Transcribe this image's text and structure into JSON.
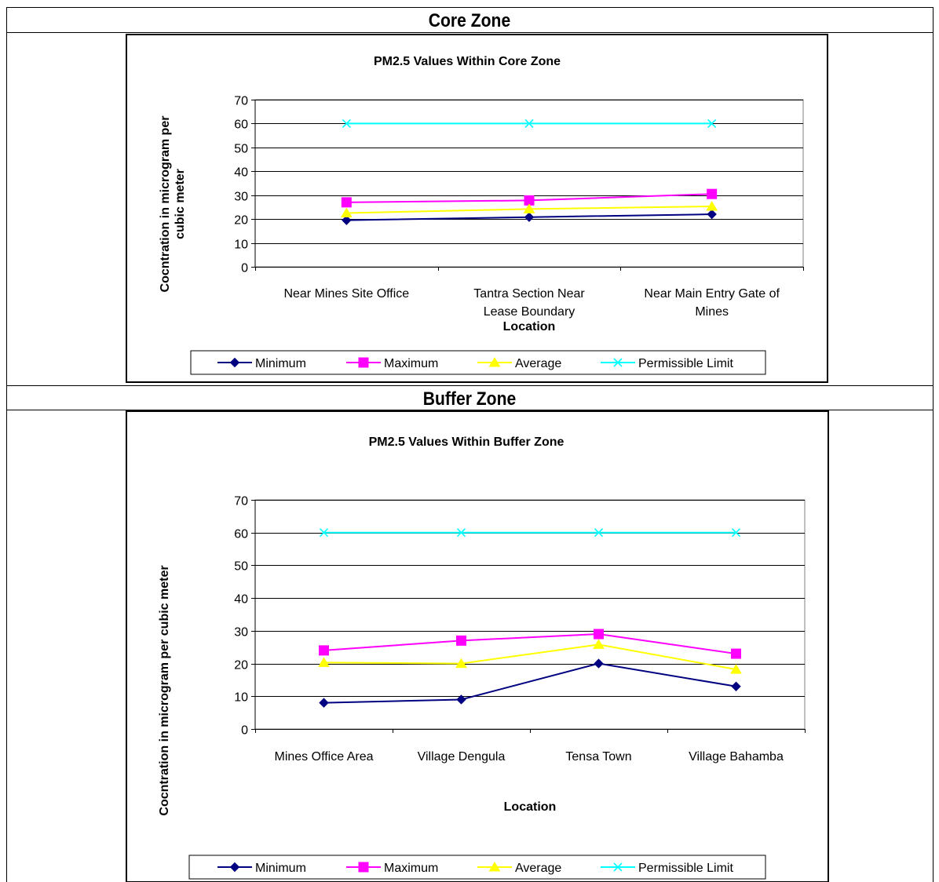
{
  "sections": [
    {
      "heading": "Core Zone",
      "chart_data": {
        "type": "line",
        "title": "PM2.5 Values Within Core Zone",
        "xlabel": "Location",
        "ylabel_lines": [
          "Cocntration in microgram per",
          "cubic meter"
        ],
        "ylim": [
          0,
          70
        ],
        "yticks": [
          0,
          10,
          20,
          30,
          40,
          50,
          60,
          70
        ],
        "grid": true,
        "legend_position": "bottom",
        "categories": [
          [
            "Near Mines Site Office"
          ],
          [
            "Tantra Section Near",
            "Lease Boundary"
          ],
          [
            "Near Main Entry Gate of",
            "Mines"
          ]
        ],
        "series": [
          {
            "name": "Minimum",
            "color": "#000080",
            "marker": "diamond",
            "values": [
              19.5,
              20.8,
              22
            ]
          },
          {
            "name": "Maximum",
            "color": "#ff00ff",
            "marker": "square",
            "values": [
              27,
              27.8,
              30.5
            ]
          },
          {
            "name": "Average",
            "color": "#ffff00",
            "marker": "triangle",
            "values": [
              22.5,
              24.2,
              25.3
            ]
          },
          {
            "name": "Permissible Limit",
            "color": "#00ffff",
            "marker": "x",
            "values": [
              60,
              60,
              60
            ]
          }
        ]
      }
    },
    {
      "heading": "Buffer Zone",
      "chart_data": {
        "type": "line",
        "title": "PM2.5 Values Within Buffer Zone",
        "xlabel": "Location",
        "ylabel_lines": [
          "Cocntration in microgram per cubic meter"
        ],
        "ylim": [
          0,
          70
        ],
        "yticks": [
          0,
          10,
          20,
          30,
          40,
          50,
          60,
          70
        ],
        "grid": true,
        "legend_position": "bottom",
        "categories": [
          [
            "Mines Office Area"
          ],
          [
            "Village Dengula"
          ],
          [
            "Tensa Town"
          ],
          [
            "Village Bahamba"
          ]
        ],
        "series": [
          {
            "name": "Minimum",
            "color": "#000080",
            "marker": "diamond",
            "values": [
              8,
              9,
              20,
              13
            ]
          },
          {
            "name": "Maximum",
            "color": "#ff00ff",
            "marker": "square",
            "values": [
              24,
              27,
              29,
              23
            ]
          },
          {
            "name": "Average",
            "color": "#ffff00",
            "marker": "triangle",
            "values": [
              20.3,
              20,
              25.8,
              18.2
            ]
          },
          {
            "name": "Permissible Limit",
            "color": "#00ffff",
            "marker": "x",
            "values": [
              60,
              60,
              60,
              60
            ]
          }
        ]
      }
    }
  ]
}
